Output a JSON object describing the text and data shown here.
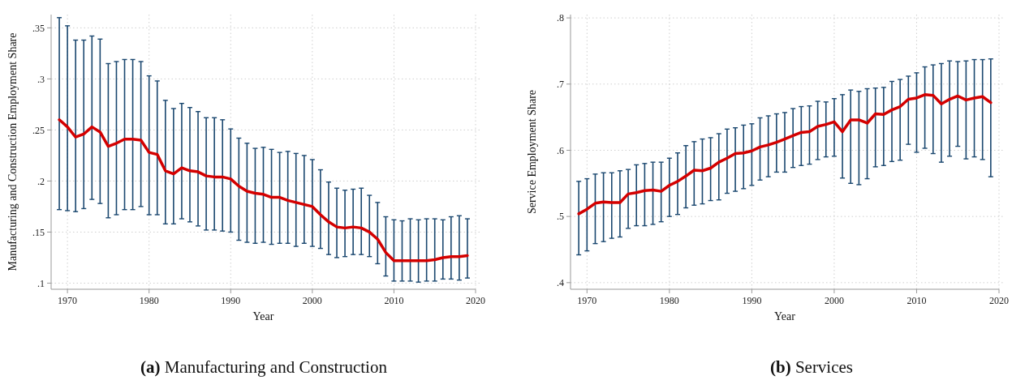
{
  "chart_data": [
    {
      "type": "line",
      "title": "(a) Manufacturing and Construction",
      "xlabel": "Year",
      "ylabel": "Manufacturing and Construction Employment Share",
      "x": [
        1969,
        1970,
        1971,
        1972,
        1973,
        1974,
        1975,
        1976,
        1977,
        1978,
        1979,
        1980,
        1981,
        1982,
        1983,
        1984,
        1985,
        1986,
        1987,
        1988,
        1989,
        1990,
        1991,
        1992,
        1993,
        1994,
        1995,
        1996,
        1997,
        1998,
        1999,
        2000,
        2001,
        2002,
        2003,
        2004,
        2005,
        2006,
        2007,
        2008,
        2009,
        2010,
        2011,
        2012,
        2013,
        2014,
        2015,
        2016,
        2017,
        2018,
        2019
      ],
      "xlim": [
        1968,
        2020
      ],
      "xticks": [
        1970,
        1980,
        1990,
        2000,
        2010,
        2020
      ],
      "ylim": [
        0.094,
        0.363
      ],
      "yticks": [
        {
          "value": 0.1,
          "label": ".1"
        },
        {
          "value": 0.15,
          "label": ".15"
        },
        {
          "value": 0.2,
          "label": ".2"
        },
        {
          "value": 0.25,
          "label": ".25"
        },
        {
          "value": 0.3,
          "label": ".3"
        },
        {
          "value": 0.35,
          "label": ".35"
        }
      ],
      "grid": true,
      "series": [
        {
          "color": "#d40000",
          "values": [
            0.26,
            0.253,
            0.243,
            0.246,
            0.253,
            0.248,
            0.234,
            0.237,
            0.241,
            0.241,
            0.24,
            0.228,
            0.226,
            0.21,
            0.207,
            0.213,
            0.21,
            0.209,
            0.205,
            0.204,
            0.204,
            0.202,
            0.195,
            0.19,
            0.188,
            0.187,
            0.184,
            0.184,
            0.181,
            0.179,
            0.177,
            0.175,
            0.167,
            0.16,
            0.155,
            0.154,
            0.155,
            0.154,
            0.15,
            0.143,
            0.13,
            0.122,
            0.122,
            0.122,
            0.122,
            0.122,
            0.123,
            0.125,
            0.126,
            0.126,
            0.127
          ],
          "errors": [
            [
              0.172,
              0.36
            ],
            [
              0.171,
              0.352
            ],
            [
              0.17,
              0.338
            ],
            [
              0.173,
              0.338
            ],
            [
              0.182,
              0.342
            ],
            [
              0.178,
              0.339
            ],
            [
              0.164,
              0.315
            ],
            [
              0.167,
              0.317
            ],
            [
              0.172,
              0.319
            ],
            [
              0.172,
              0.319
            ],
            [
              0.175,
              0.317
            ],
            [
              0.167,
              0.303
            ],
            [
              0.167,
              0.298
            ],
            [
              0.158,
              0.279
            ],
            [
              0.158,
              0.271
            ],
            [
              0.163,
              0.276
            ],
            [
              0.16,
              0.272
            ],
            [
              0.156,
              0.268
            ],
            [
              0.152,
              0.262
            ],
            [
              0.152,
              0.262
            ],
            [
              0.151,
              0.26
            ],
            [
              0.15,
              0.251
            ],
            [
              0.142,
              0.242
            ],
            [
              0.14,
              0.237
            ],
            [
              0.139,
              0.232
            ],
            [
              0.14,
              0.233
            ],
            [
              0.138,
              0.231
            ],
            [
              0.139,
              0.228
            ],
            [
              0.139,
              0.229
            ],
            [
              0.136,
              0.227
            ],
            [
              0.139,
              0.225
            ],
            [
              0.136,
              0.221
            ],
            [
              0.134,
              0.211
            ],
            [
              0.128,
              0.199
            ],
            [
              0.125,
              0.193
            ],
            [
              0.126,
              0.191
            ],
            [
              0.128,
              0.192
            ],
            [
              0.128,
              0.193
            ],
            [
              0.126,
              0.186
            ],
            [
              0.119,
              0.179
            ],
            [
              0.107,
              0.165
            ],
            [
              0.102,
              0.162
            ],
            [
              0.102,
              0.161
            ],
            [
              0.102,
              0.163
            ],
            [
              0.101,
              0.162
            ],
            [
              0.102,
              0.163
            ],
            [
              0.102,
              0.163
            ],
            [
              0.104,
              0.162
            ],
            [
              0.104,
              0.165
            ],
            [
              0.103,
              0.166
            ],
            [
              0.105,
              0.163
            ]
          ]
        }
      ]
    },
    {
      "type": "line",
      "title": "(b) Services",
      "xlabel": "Year",
      "ylabel": "Service Employment Share",
      "x": [
        1969,
        1970,
        1971,
        1972,
        1973,
        1974,
        1975,
        1976,
        1977,
        1978,
        1979,
        1980,
        1981,
        1982,
        1983,
        1984,
        1985,
        1986,
        1987,
        1988,
        1989,
        1990,
        1991,
        1992,
        1993,
        1994,
        1995,
        1996,
        1997,
        1998,
        1999,
        2000,
        2001,
        2002,
        2003,
        2004,
        2005,
        2006,
        2007,
        2008,
        2009,
        2010,
        2011,
        2012,
        2013,
        2014,
        2015,
        2016,
        2017,
        2018,
        2019
      ],
      "xlim": [
        1968,
        2020
      ],
      "xticks": [
        1970,
        1980,
        1990,
        2000,
        2010,
        2020
      ],
      "ylim": [
        0.39,
        0.805
      ],
      "yticks": [
        {
          "value": 0.4,
          "label": ".4"
        },
        {
          "value": 0.5,
          "label": ".5"
        },
        {
          "value": 0.6,
          "label": ".6"
        },
        {
          "value": 0.7,
          "label": ".7"
        },
        {
          "value": 0.8,
          "label": ".8"
        }
      ],
      "grid": true,
      "series": [
        {
          "color": "#d40000",
          "values": [
            0.504,
            0.511,
            0.52,
            0.522,
            0.521,
            0.521,
            0.534,
            0.536,
            0.539,
            0.54,
            0.538,
            0.547,
            0.553,
            0.561,
            0.57,
            0.569,
            0.573,
            0.582,
            0.588,
            0.595,
            0.596,
            0.599,
            0.605,
            0.608,
            0.612,
            0.617,
            0.622,
            0.627,
            0.628,
            0.636,
            0.639,
            0.643,
            0.628,
            0.646,
            0.646,
            0.641,
            0.655,
            0.654,
            0.661,
            0.666,
            0.677,
            0.679,
            0.684,
            0.683,
            0.67,
            0.677,
            0.682,
            0.676,
            0.679,
            0.681,
            0.672
          ],
          "errors": [
            [
              0.442,
              0.553
            ],
            [
              0.448,
              0.557
            ],
            [
              0.459,
              0.564
            ],
            [
              0.462,
              0.566
            ],
            [
              0.467,
              0.566
            ],
            [
              0.469,
              0.569
            ],
            [
              0.482,
              0.571
            ],
            [
              0.486,
              0.578
            ],
            [
              0.486,
              0.58
            ],
            [
              0.488,
              0.582
            ],
            [
              0.492,
              0.582
            ],
            [
              0.5,
              0.588
            ],
            [
              0.503,
              0.596
            ],
            [
              0.513,
              0.607
            ],
            [
              0.517,
              0.613
            ],
            [
              0.519,
              0.617
            ],
            [
              0.524,
              0.619
            ],
            [
              0.525,
              0.625
            ],
            [
              0.535,
              0.632
            ],
            [
              0.538,
              0.634
            ],
            [
              0.542,
              0.638
            ],
            [
              0.547,
              0.64
            ],
            [
              0.555,
              0.649
            ],
            [
              0.56,
              0.652
            ],
            [
              0.567,
              0.655
            ],
            [
              0.567,
              0.657
            ],
            [
              0.574,
              0.663
            ],
            [
              0.577,
              0.666
            ],
            [
              0.579,
              0.667
            ],
            [
              0.586,
              0.674
            ],
            [
              0.59,
              0.673
            ],
            [
              0.591,
              0.678
            ],
            [
              0.558,
              0.684
            ],
            [
              0.55,
              0.691
            ],
            [
              0.548,
              0.689
            ],
            [
              0.557,
              0.693
            ],
            [
              0.575,
              0.694
            ],
            [
              0.577,
              0.695
            ],
            [
              0.583,
              0.704
            ],
            [
              0.585,
              0.707
            ],
            [
              0.609,
              0.712
            ],
            [
              0.597,
              0.717
            ],
            [
              0.603,
              0.726
            ],
            [
              0.595,
              0.729
            ],
            [
              0.582,
              0.731
            ],
            [
              0.591,
              0.735
            ],
            [
              0.606,
              0.734
            ],
            [
              0.587,
              0.735
            ],
            [
              0.59,
              0.737
            ],
            [
              0.586,
              0.737
            ],
            [
              0.56,
              0.738
            ]
          ]
        }
      ]
    }
  ]
}
